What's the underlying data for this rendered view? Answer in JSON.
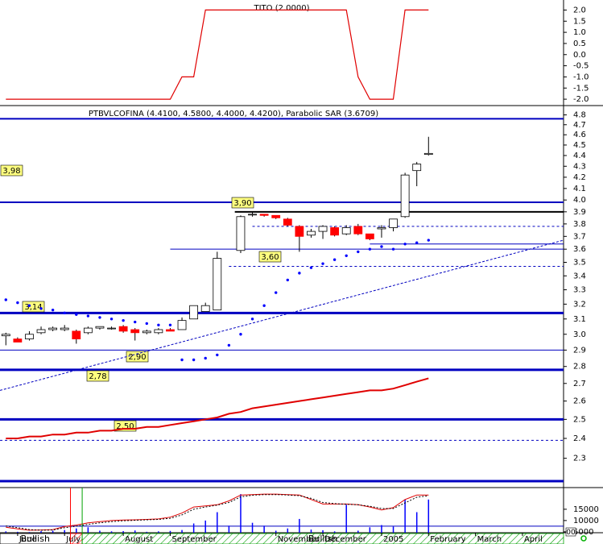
{
  "chart_data": [
    {
      "type": "line",
      "title": "TITO (2.0000)",
      "xlim": [
        -0.5,
        47.5
      ],
      "ylim": [
        -2.25,
        2.45
      ],
      "yticks": [
        {
          "value": 2,
          "label": "2.0"
        },
        {
          "value": 1.5,
          "label": "1.5"
        },
        {
          "value": 1,
          "label": "1.0"
        },
        {
          "value": 0.5,
          "label": "0.5"
        },
        {
          "value": 0,
          "label": "0.0"
        },
        {
          "value": -0.5,
          "label": "-0.5"
        },
        {
          "value": -1,
          "label": "-1.0"
        },
        {
          "value": -1.5,
          "label": "-1.5"
        },
        {
          "value": -2,
          "label": "-2.0"
        }
      ],
      "series": [
        {
          "color": "#e00000",
          "values": [
            -2,
            -2,
            -2,
            -2,
            -2,
            -2,
            -2,
            -2,
            -2,
            -2,
            -2,
            -2,
            -2,
            -2,
            -2,
            -1,
            -1,
            2,
            2,
            2,
            2,
            2,
            2,
            2,
            2,
            2,
            2,
            2,
            2,
            2,
            -1,
            -2,
            -2,
            -2,
            2,
            2,
            2
          ]
        }
      ]
    },
    {
      "type": "candlestick",
      "title": "PTBVLCOFINA (4.4100, 4.5800, 4.4000, 4.4200), Parabolic SAR (3.6709)",
      "scale": "log",
      "xlim": [
        -0.5,
        47.5
      ],
      "ylim": [
        2.16,
        4.88
      ],
      "yticks": [
        4.8,
        4.7,
        4.6,
        4.5,
        4.4,
        4.3,
        4.2,
        4.1,
        {
          "value": 4,
          "label": "4.0"
        },
        3.9,
        3.8,
        3.7,
        3.6,
        3.5,
        3.4,
        3.3,
        3.2,
        3.1,
        {
          "value": 3,
          "label": "3.0"
        },
        2.9,
        2.8,
        2.7,
        2.6,
        2.5,
        2.4,
        2.3
      ],
      "candles": {
        "color_up": "#ffffff",
        "color_down": "#ff0000",
        "open": [
          2.99,
          2.97,
          2.97,
          3.01,
          3.03,
          3.03,
          3.02,
          3.01,
          3.04,
          3.04,
          3.05,
          3.03,
          3.01,
          3.01,
          3.03,
          3.03,
          3.1,
          3.15,
          3.16,
          null,
          3.59,
          3.88,
          3.88,
          3.87,
          3.84,
          3.78,
          3.71,
          3.74,
          3.77,
          3.72,
          3.78,
          3.72,
          3.76,
          3.77,
          3.86,
          4.26,
          4.41
        ],
        "high": [
          3.01,
          2.98,
          3.02,
          3.05,
          3.05,
          3.06,
          3.03,
          3.05,
          3.05,
          3.05,
          3.06,
          3.04,
          3.03,
          3.04,
          3.04,
          3.11,
          3.19,
          3.21,
          3.58,
          null,
          3.87,
          3.9,
          3.88,
          3.87,
          3.85,
          3.79,
          3.76,
          3.79,
          3.78,
          3.79,
          3.8,
          3.72,
          3.79,
          3.84,
          4.24,
          4.34,
          4.58
        ],
        "low": [
          2.93,
          2.95,
          2.96,
          3.0,
          3.02,
          3.02,
          2.94,
          3.0,
          3.03,
          3.03,
          3.01,
          2.96,
          3.0,
          3.0,
          3.02,
          3.03,
          3.1,
          3.15,
          3.16,
          null,
          3.57,
          3.86,
          3.86,
          3.84,
          3.78,
          3.58,
          3.69,
          3.68,
          3.7,
          3.71,
          3.71,
          3.67,
          3.69,
          3.74,
          3.85,
          4.12,
          4.4
        ],
        "close": [
          3.0,
          2.95,
          3.0,
          3.03,
          3.04,
          3.04,
          2.97,
          3.04,
          3.05,
          3.04,
          3.02,
          3.01,
          3.02,
          3.03,
          3.02,
          3.09,
          3.19,
          3.19,
          3.53,
          null,
          3.86,
          3.88,
          3.87,
          3.85,
          3.79,
          3.7,
          3.74,
          3.78,
          3.71,
          3.77,
          3.72,
          3.68,
          3.77,
          3.84,
          4.22,
          4.32,
          4.42
        ]
      },
      "sar": {
        "color": "#0000ff",
        "values": [
          3.23,
          3.21,
          3.19,
          3.17,
          3.16,
          3.14,
          3.13,
          3.12,
          3.11,
          3.1,
          3.09,
          3.08,
          3.07,
          3.06,
          3.06,
          2.84,
          2.84,
          2.85,
          2.87,
          2.93,
          3.0,
          3.1,
          3.19,
          3.28,
          3.37,
          3.42,
          3.46,
          3.49,
          3.52,
          3.55,
          3.58,
          3.6,
          3.62,
          3.6,
          3.64,
          3.65,
          3.67
        ]
      },
      "moving_average": {
        "color": "#e00000",
        "values": [
          2.4,
          2.4,
          2.41,
          2.41,
          2.42,
          2.42,
          2.43,
          2.43,
          2.44,
          2.44,
          2.45,
          2.45,
          2.46,
          2.46,
          2.47,
          2.48,
          2.49,
          2.5,
          2.51,
          2.53,
          2.54,
          2.56,
          2.57,
          2.58,
          2.59,
          2.6,
          2.61,
          2.62,
          2.63,
          2.64,
          2.65,
          2.66,
          2.66,
          2.67,
          2.69,
          2.71,
          2.73
        ]
      },
      "trendline": {
        "color": "#0000c0",
        "from": -0.5,
        "to": 47.5,
        "start": 2.66,
        "end": 3.67
      },
      "levels": [
        {
          "value": 4.76,
          "color": "#0000c0",
          "width": 2
        },
        {
          "value": 3.98,
          "color": "#0000c0",
          "width": 2,
          "label": "3,98"
        },
        {
          "value": 3.9,
          "color": "#000000",
          "width": 2,
          "from": 19.5,
          "label": "3,90"
        },
        {
          "value": 3.78,
          "color": "#0000c0",
          "width": 1,
          "from": 21,
          "dashed": true
        },
        {
          "value": 3.64,
          "color": "#0000c0",
          "width": 1,
          "from": 31
        },
        {
          "value": 3.6,
          "color": "#0000c0",
          "width": 1,
          "from": 14,
          "label": "3,60"
        },
        {
          "value": 3.47,
          "color": "#0000c0",
          "width": 1,
          "from": 19,
          "dashed": true
        },
        {
          "value": 3.14,
          "color": "#0000c0",
          "width": 3,
          "label": "3,14"
        },
        {
          "value": 2.9,
          "color": "#0000c0",
          "width": 1,
          "label": "2,90"
        },
        {
          "value": 2.78,
          "color": "#0000c0",
          "width": 3,
          "label": "2,78"
        },
        {
          "value": 2.5,
          "color": "#0000c0",
          "width": 3,
          "label": "2,50"
        },
        {
          "value": 2.39,
          "color": "#0000c0",
          "width": 1,
          "dashed": true
        },
        {
          "value": 2.19,
          "color": "#0000c0",
          "width": 3
        }
      ]
    },
    {
      "type": "bar",
      "xlim": [
        -0.5,
        47.5
      ],
      "ylim": [
        4600,
        24600
      ],
      "yticks": [
        15000,
        10000,
        5000
      ],
      "color": "#0000ff",
      "values": [
        5200,
        5000,
        4900,
        5300,
        5500,
        5800,
        6500,
        7000,
        5500,
        5200,
        5300,
        5600,
        5000,
        5200,
        5400,
        5800,
        8700,
        10000,
        13700,
        7700,
        21700,
        9000,
        7700,
        5500,
        6500,
        10700,
        6000,
        5700,
        5200,
        17000,
        5500,
        7000,
        8000,
        7300,
        19300,
        13700,
        19300
      ],
      "lines": [
        {
          "color": "#e00000",
          "values": [
            7000,
            6300,
            5700,
            5800,
            6000,
            7300,
            8000,
            9000,
            9500,
            10000,
            10200,
            10300,
            10500,
            10700,
            11500,
            13300,
            16000,
            16500,
            17000,
            18700,
            21300,
            21500,
            21700,
            21700,
            21500,
            21300,
            19300,
            17300,
            17300,
            17300,
            17000,
            16000,
            14700,
            15700,
            19300,
            21300,
            21300
          ]
        },
        {
          "color": "#000000",
          "dashed": true,
          "values": [
            7600,
            6800,
            6000,
            5700,
            5800,
            6800,
            7500,
            8300,
            9000,
            9500,
            9900,
            10100,
            10300,
            10500,
            11000,
            12500,
            15000,
            16000,
            16800,
            18000,
            20500,
            21200,
            21500,
            21500,
            21300,
            21000,
            19800,
            18000,
            17500,
            17200,
            17000,
            16300,
            15300,
            15300,
            17800,
            20300,
            21000
          ]
        }
      ],
      "level": {
        "value": 7500,
        "color": "#0000c0"
      },
      "last_value_label": "00",
      "xticks": [
        {
          "value": 1,
          "label": "June"
        },
        {
          "value": 5,
          "label": "July"
        },
        {
          "value": 10,
          "label": "August"
        },
        {
          "value": 14,
          "label": "September"
        },
        {
          "value": 23,
          "label": "November"
        },
        {
          "value": 27,
          "label": "December"
        },
        {
          "value": 32,
          "label": "2005"
        },
        {
          "value": 36,
          "label": "February"
        },
        {
          "value": 40,
          "label": "March"
        },
        {
          "value": 44,
          "label": "April"
        }
      ],
      "signals": [
        {
          "name": "Bullish",
          "from": -0.5,
          "to": 5.5,
          "color": "#ffffff"
        },
        {
          "from": 5.5,
          "to": 6.5,
          "color": "#ff0000"
        },
        {
          "name": "Bullish",
          "from": 6.5,
          "to": 47.5,
          "color": "#00a000"
        }
      ]
    }
  ]
}
